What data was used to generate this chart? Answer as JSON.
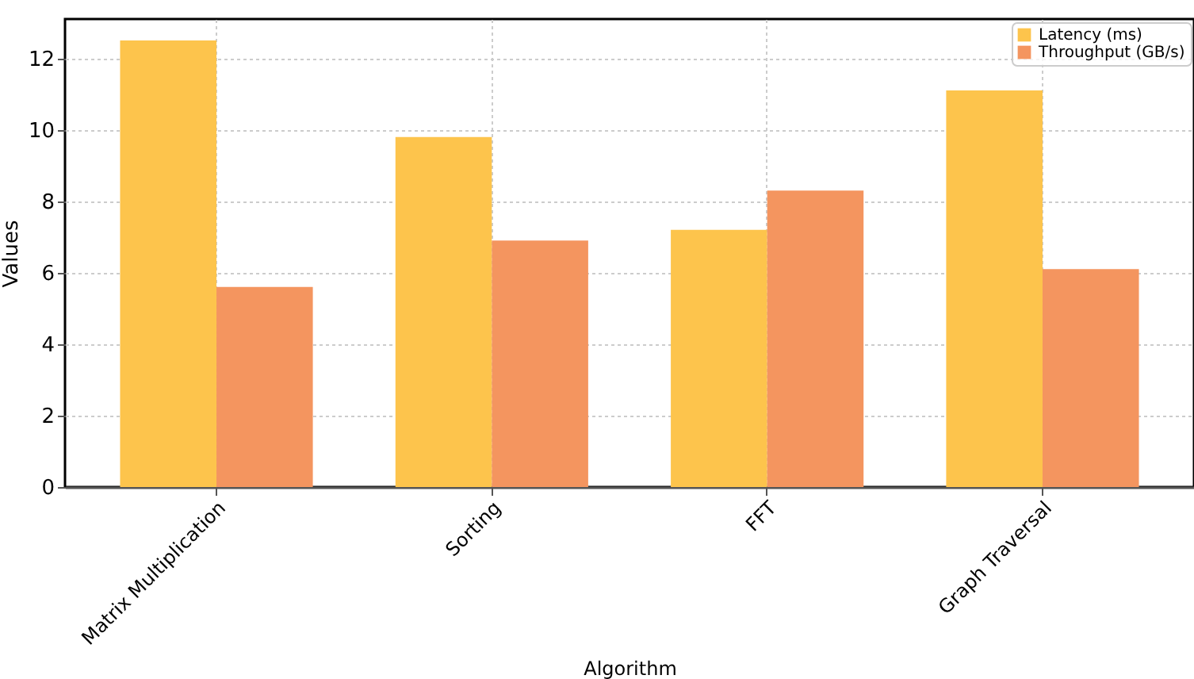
{
  "chart_data": {
    "type": "bar",
    "xlabel": "Algorithm",
    "ylabel": "Values",
    "categories": [
      "Matrix Multiplication",
      "Sorting",
      "FFT",
      "Graph Traversal"
    ],
    "series": [
      {
        "name": "Latency (ms)",
        "color": "#fdc44c",
        "values": [
          12.5,
          9.8,
          7.2,
          11.1
        ]
      },
      {
        "name": "Throughput (GB/s)",
        "color": "#f4955f",
        "values": [
          5.6,
          6.9,
          8.3,
          6.1
        ]
      }
    ],
    "ylim": [
      0,
      13.1
    ],
    "yticks": [
      0,
      2,
      4,
      6,
      8,
      10,
      12
    ],
    "grid": true,
    "legend": "top right"
  }
}
